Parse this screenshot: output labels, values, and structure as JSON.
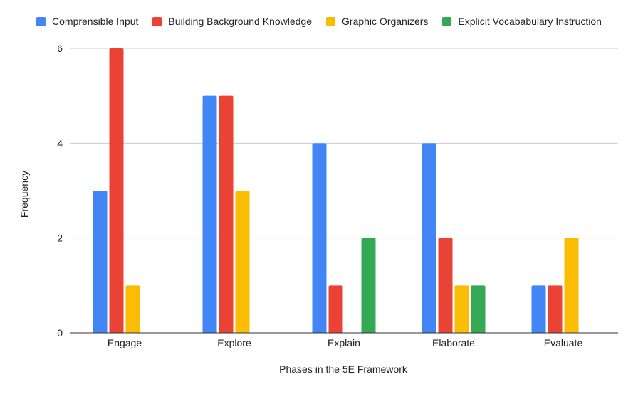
{
  "chart_data": {
    "type": "bar",
    "title": "",
    "xlabel": "Phases in the 5E Framework",
    "ylabel": "Frequency",
    "categories": [
      "Engage",
      "Explore",
      "Explain",
      "Elaborate",
      "Evaluate"
    ],
    "series": [
      {
        "name": "Comprensible Input",
        "color": "#4285F4",
        "values": [
          3,
          5,
          4,
          4,
          1
        ]
      },
      {
        "name": "Building Background Knowledge",
        "color": "#EA4335",
        "values": [
          6,
          5,
          1,
          2,
          1
        ]
      },
      {
        "name": "Graphic Organizers",
        "color": "#FBBC04",
        "values": [
          1,
          3,
          0,
          1,
          2
        ]
      },
      {
        "name": "Explicit Vocababulary Instruction",
        "color": "#34A853",
        "values": [
          0,
          0,
          2,
          1,
          0
        ]
      }
    ],
    "ylim": [
      0,
      6
    ],
    "yticks": [
      0,
      2,
      4,
      6
    ],
    "grid": true,
    "legend": "top"
  }
}
